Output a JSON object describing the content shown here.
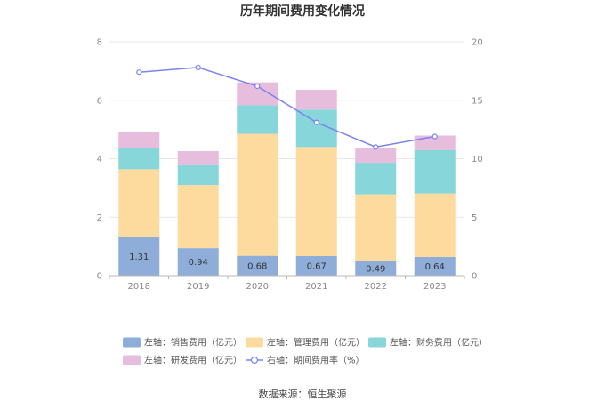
{
  "chart_data": {
    "type": "bar",
    "title": "历年期间费用变化情况",
    "categories": [
      "2018",
      "2019",
      "2020",
      "2021",
      "2022",
      "2023"
    ],
    "stacked": true,
    "y_left": {
      "lim": [
        0,
        8
      ],
      "ticks": [
        "0",
        "2",
        "4",
        "6",
        "8"
      ]
    },
    "y_right": {
      "lim": [
        0,
        20
      ],
      "ticks": [
        "0",
        "5",
        "10",
        "15",
        "20"
      ]
    },
    "grid": true,
    "legend_position": "bottom",
    "series": [
      {
        "name": "左轴：销售费用（亿元）",
        "axis": "left",
        "color": "#8eadd8",
        "values": [
          1.31,
          0.94,
          0.68,
          0.67,
          0.49,
          0.64
        ],
        "labels": [
          "1.31",
          "0.94",
          "0.68",
          "0.67",
          "0.49",
          "0.64"
        ]
      },
      {
        "name": "左轴：管理费用（亿元）",
        "axis": "left",
        "color": "#fddb9e",
        "values": [
          2.33,
          2.16,
          4.17,
          3.73,
          2.29,
          2.17
        ]
      },
      {
        "name": "左轴：财务费用（亿元）",
        "axis": "left",
        "color": "#86d6da",
        "values": [
          0.71,
          0.68,
          0.98,
          1.28,
          1.08,
          1.48
        ]
      },
      {
        "name": "左轴：研发费用（亿元）",
        "axis": "left",
        "color": "#e6bddc",
        "values": [
          0.55,
          0.48,
          0.78,
          0.68,
          0.52,
          0.5
        ]
      },
      {
        "name": "右轴：期间费用率（%）",
        "axis": "right",
        "type": "line",
        "color": "#7b83f0",
        "values": [
          17.4,
          17.8,
          16.2,
          13.1,
          11.0,
          11.9
        ]
      }
    ]
  },
  "source": "数据来源：恒生聚源"
}
